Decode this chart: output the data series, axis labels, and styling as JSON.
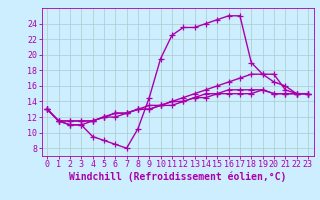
{
  "background_color": "#cceeff",
  "grid_color": "#aacccc",
  "line_color": "#aa00aa",
  "marker": "+",
  "markersize": 4,
  "linewidth": 1.0,
  "xlabel": "Windchill (Refroidissement éolien,°C)",
  "xlabel_fontsize": 7,
  "tick_fontsize": 6,
  "ylim": [
    7.0,
    26.0
  ],
  "xlim": [
    -0.5,
    23.5
  ],
  "yticks": [
    8,
    10,
    12,
    14,
    16,
    18,
    20,
    22,
    24
  ],
  "xticks": [
    0,
    1,
    2,
    3,
    4,
    5,
    6,
    7,
    8,
    9,
    10,
    11,
    12,
    13,
    14,
    15,
    16,
    17,
    18,
    19,
    20,
    21,
    22,
    23
  ],
  "series": [
    [
      13.0,
      11.5,
      11.0,
      11.0,
      9.5,
      9.0,
      8.5,
      8.0,
      10.5,
      14.5,
      19.5,
      22.5,
      23.5,
      23.5,
      24.0,
      24.5,
      25.0,
      25.0,
      19.0,
      17.5,
      16.5,
      16.0,
      15.0,
      15.0
    ],
    [
      13.0,
      11.5,
      11.5,
      11.5,
      11.5,
      12.0,
      12.0,
      12.5,
      13.0,
      13.0,
      13.5,
      14.0,
      14.5,
      15.0,
      15.5,
      16.0,
      16.5,
      17.0,
      17.5,
      17.5,
      17.5,
      15.5,
      15.0,
      15.0
    ],
    [
      13.0,
      11.5,
      11.5,
      11.5,
      11.5,
      12.0,
      12.5,
      12.5,
      13.0,
      13.0,
      13.5,
      13.5,
      14.0,
      14.5,
      14.5,
      15.0,
      15.0,
      15.0,
      15.0,
      15.5,
      15.0,
      15.0,
      15.0,
      15.0
    ],
    [
      13.0,
      11.5,
      11.0,
      11.0,
      11.5,
      12.0,
      12.5,
      12.5,
      13.0,
      13.5,
      13.5,
      14.0,
      14.0,
      14.5,
      15.0,
      15.0,
      15.5,
      15.5,
      15.5,
      15.5,
      15.0,
      15.0,
      15.0,
      15.0
    ]
  ]
}
